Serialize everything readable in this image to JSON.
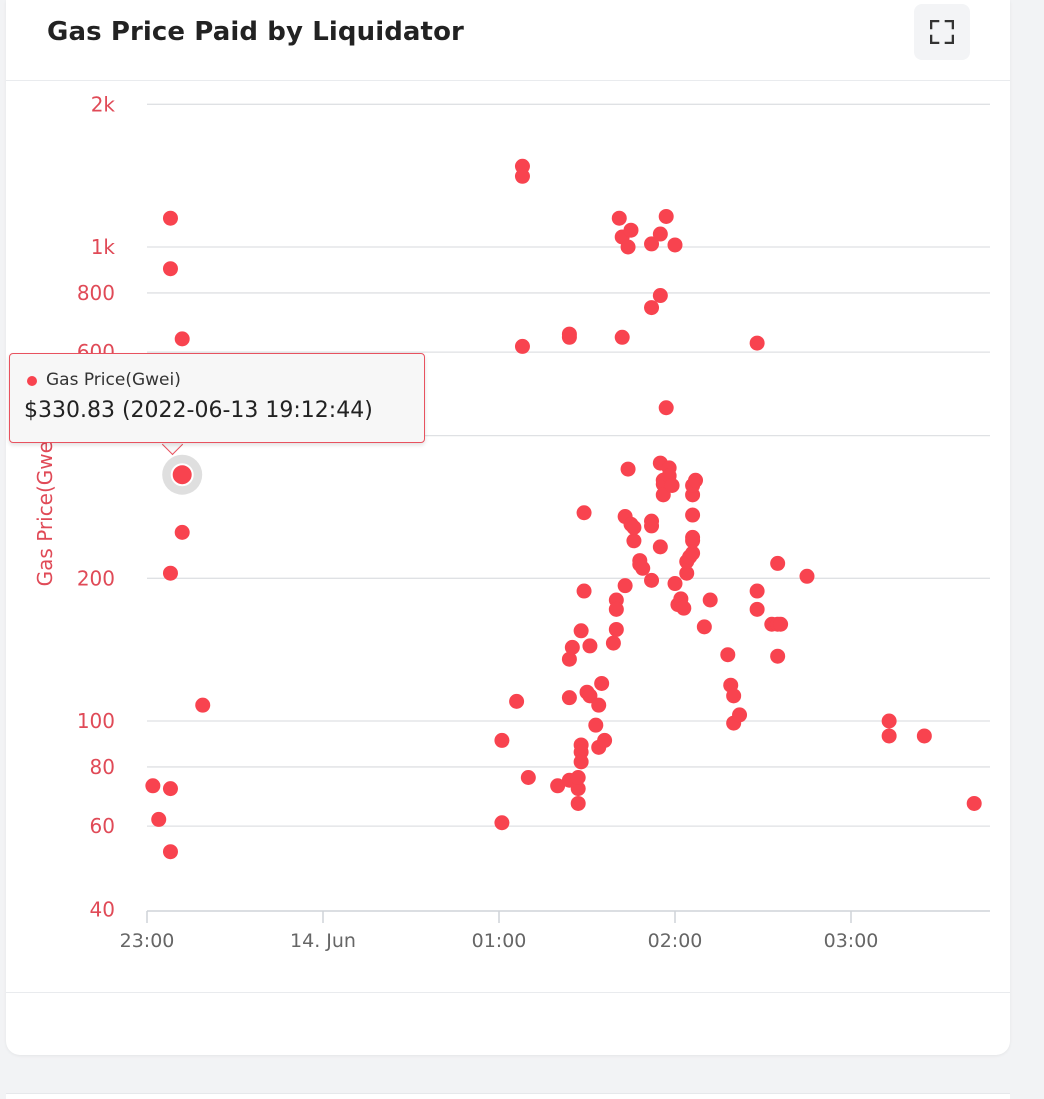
{
  "header": {
    "title": "Gas Price Paid by Liquidator",
    "fullscreen_icon": "expand-icon"
  },
  "tooltip": {
    "series": "Gas Price(Gwei)",
    "value": "$330.83 (2022-06-13 19:12:44)"
  },
  "colors": {
    "series": "#f8434f",
    "axis_text": "#e04a57",
    "grid": "#dfe1e4"
  },
  "chart_data": {
    "type": "scatter",
    "title": "Gas Price Paid by Liquidator",
    "ylabel": "Gas Price(Gwei)",
    "xlabel": "",
    "y_scale": "log",
    "ylim": [
      40,
      2000
    ],
    "xlim": [
      "22:59",
      "03:42"
    ],
    "grid": "horizontal",
    "y_ticks": [
      {
        "value": 40,
        "label": "40"
      },
      {
        "value": 60,
        "label": "60"
      },
      {
        "value": 80,
        "label": "80"
      },
      {
        "value": 100,
        "label": "100"
      },
      {
        "value": 200,
        "label": "200"
      },
      {
        "value": 400,
        "label": "400"
      },
      {
        "value": 600,
        "label": "600"
      },
      {
        "value": 800,
        "label": "800"
      },
      {
        "value": 1000,
        "label": "1k"
      },
      {
        "value": 2000,
        "label": "2k"
      }
    ],
    "x_ticks": [
      {
        "value": "23:00",
        "label": "23:00"
      },
      {
        "value": "00:00",
        "label": "14. Jun"
      },
      {
        "value": "01:00",
        "label": "01:00"
      },
      {
        "value": "02:00",
        "label": "02:00"
      },
      {
        "value": "03:00",
        "label": "03:00"
      }
    ],
    "highlighted_point": {
      "x": "23:12",
      "y": 330.83
    },
    "series": [
      {
        "name": "Gas Price(Gwei)",
        "points": [
          {
            "x": "23:02",
            "y": 73
          },
          {
            "x": "23:04",
            "y": 62
          },
          {
            "x": "23:08",
            "y": 1150
          },
          {
            "x": "23:08",
            "y": 900
          },
          {
            "x": "23:08",
            "y": 205
          },
          {
            "x": "23:08",
            "y": 72
          },
          {
            "x": "23:08",
            "y": 53
          },
          {
            "x": "23:12",
            "y": 640
          },
          {
            "x": "23:12",
            "y": 330.83
          },
          {
            "x": "23:12",
            "y": 250
          },
          {
            "x": "23:19",
            "y": 108
          },
          {
            "x": "01:01",
            "y": 91
          },
          {
            "x": "01:01",
            "y": 61
          },
          {
            "x": "01:06",
            "y": 110
          },
          {
            "x": "01:08",
            "y": 1480
          },
          {
            "x": "01:08",
            "y": 1410
          },
          {
            "x": "01:08",
            "y": 617
          },
          {
            "x": "01:10",
            "y": 76
          },
          {
            "x": "01:20",
            "y": 73
          },
          {
            "x": "01:24",
            "y": 645
          },
          {
            "x": "01:24",
            "y": 655
          },
          {
            "x": "01:24",
            "y": 135
          },
          {
            "x": "01:24",
            "y": 112
          },
          {
            "x": "01:24",
            "y": 75
          },
          {
            "x": "01:25",
            "y": 143
          },
          {
            "x": "01:27",
            "y": 72
          },
          {
            "x": "01:27",
            "y": 67
          },
          {
            "x": "01:27",
            "y": 76
          },
          {
            "x": "01:28",
            "y": 155
          },
          {
            "x": "01:28",
            "y": 89
          },
          {
            "x": "01:28",
            "y": 86
          },
          {
            "x": "01:28",
            "y": 82
          },
          {
            "x": "01:29",
            "y": 275
          },
          {
            "x": "01:29",
            "y": 188
          },
          {
            "x": "01:30",
            "y": 115
          },
          {
            "x": "01:31",
            "y": 113
          },
          {
            "x": "01:31",
            "y": 144
          },
          {
            "x": "01:33",
            "y": 98
          },
          {
            "x": "01:34",
            "y": 88
          },
          {
            "x": "01:34",
            "y": 108
          },
          {
            "x": "01:35",
            "y": 120
          },
          {
            "x": "01:36",
            "y": 91
          },
          {
            "x": "01:39",
            "y": 146
          },
          {
            "x": "01:40",
            "y": 180
          },
          {
            "x": "01:40",
            "y": 172
          },
          {
            "x": "01:40",
            "y": 156
          },
          {
            "x": "01:41",
            "y": 1150
          },
          {
            "x": "01:42",
            "y": 1050
          },
          {
            "x": "01:42",
            "y": 645
          },
          {
            "x": "01:43",
            "y": 270
          },
          {
            "x": "01:43",
            "y": 193
          },
          {
            "x": "01:44",
            "y": 340
          },
          {
            "x": "01:44",
            "y": 1000
          },
          {
            "x": "01:45",
            "y": 1085
          },
          {
            "x": "01:45",
            "y": 260
          },
          {
            "x": "01:46",
            "y": 240
          },
          {
            "x": "01:46",
            "y": 256
          },
          {
            "x": "01:48",
            "y": 218
          },
          {
            "x": "01:48",
            "y": 214
          },
          {
            "x": "01:49",
            "y": 210
          },
          {
            "x": "01:52",
            "y": 1015
          },
          {
            "x": "01:52",
            "y": 745
          },
          {
            "x": "01:52",
            "y": 264
          },
          {
            "x": "01:52",
            "y": 258
          },
          {
            "x": "01:52",
            "y": 198
          },
          {
            "x": "01:55",
            "y": 790
          },
          {
            "x": "01:55",
            "y": 1065
          },
          {
            "x": "01:55",
            "y": 350
          },
          {
            "x": "01:55",
            "y": 233
          },
          {
            "x": "01:56",
            "y": 322
          },
          {
            "x": "01:56",
            "y": 316
          },
          {
            "x": "01:56",
            "y": 300
          },
          {
            "x": "01:57",
            "y": 1160
          },
          {
            "x": "01:57",
            "y": 458
          },
          {
            "x": "01:58",
            "y": 342
          },
          {
            "x": "01:58",
            "y": 329
          },
          {
            "x": "01:59",
            "y": 314
          },
          {
            "x": "02:00",
            "y": 1010
          },
          {
            "x": "02:00",
            "y": 195
          },
          {
            "x": "02:01",
            "y": 176
          },
          {
            "x": "02:02",
            "y": 181
          },
          {
            "x": "02:03",
            "y": 173
          },
          {
            "x": "02:04",
            "y": 205
          },
          {
            "x": "02:04",
            "y": 217
          },
          {
            "x": "02:05",
            "y": 222
          },
          {
            "x": "02:06",
            "y": 226
          },
          {
            "x": "02:06",
            "y": 240
          },
          {
            "x": "02:06",
            "y": 244
          },
          {
            "x": "02:06",
            "y": 272
          },
          {
            "x": "02:06",
            "y": 300
          },
          {
            "x": "02:06",
            "y": 314
          },
          {
            "x": "02:07",
            "y": 322
          },
          {
            "x": "02:10",
            "y": 158
          },
          {
            "x": "02:12",
            "y": 180
          },
          {
            "x": "02:18",
            "y": 138
          },
          {
            "x": "02:19",
            "y": 119
          },
          {
            "x": "02:20",
            "y": 113
          },
          {
            "x": "02:20",
            "y": 99
          },
          {
            "x": "02:22",
            "y": 103
          },
          {
            "x": "02:28",
            "y": 627
          },
          {
            "x": "02:28",
            "y": 188
          },
          {
            "x": "02:28",
            "y": 172
          },
          {
            "x": "02:33",
            "y": 160
          },
          {
            "x": "02:35",
            "y": 215
          },
          {
            "x": "02:35",
            "y": 137
          },
          {
            "x": "02:35",
            "y": 160
          },
          {
            "x": "02:36",
            "y": 160
          },
          {
            "x": "02:45",
            "y": 202
          },
          {
            "x": "03:13",
            "y": 100
          },
          {
            "x": "03:13",
            "y": 93
          },
          {
            "x": "03:25",
            "y": 93
          },
          {
            "x": "03:42",
            "y": 67
          }
        ]
      }
    ]
  }
}
